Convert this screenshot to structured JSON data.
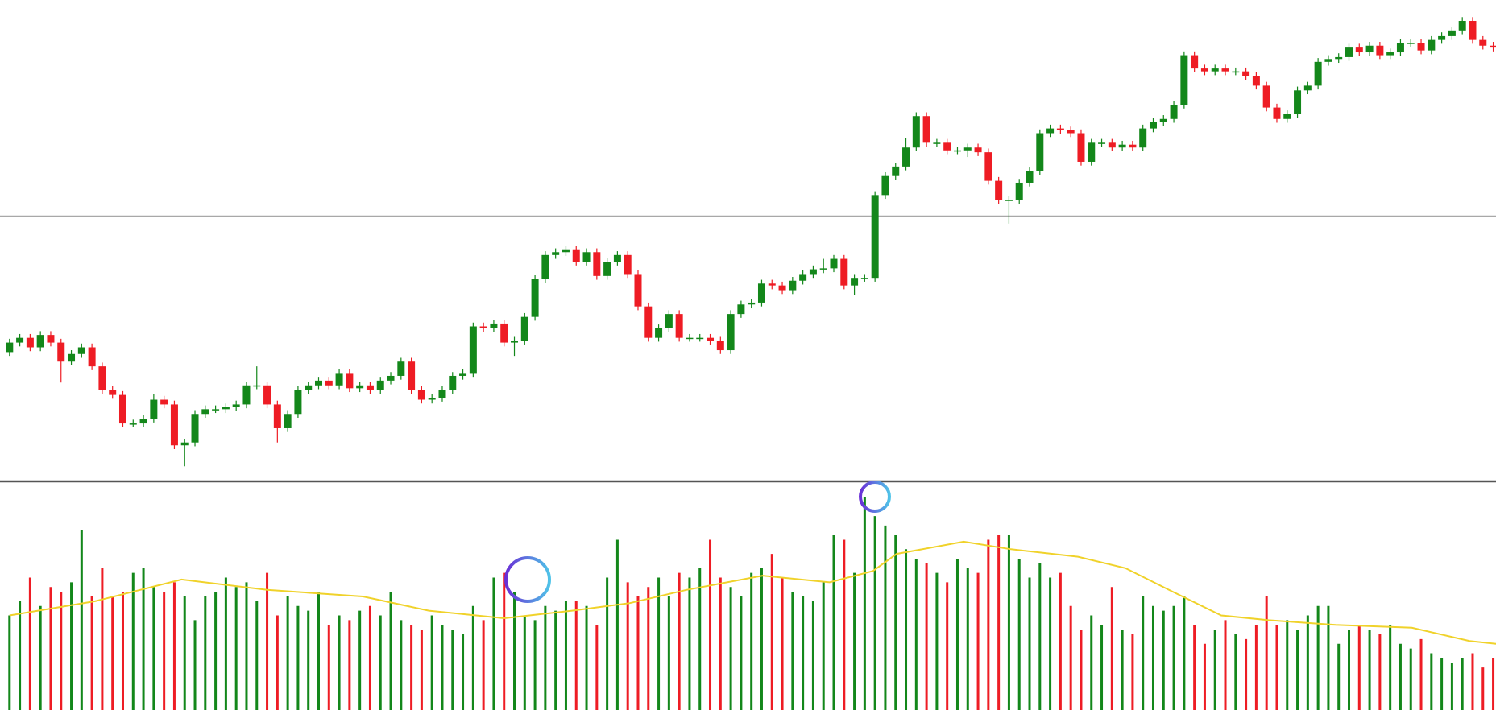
{
  "chart_data": {
    "type": "candlestick",
    "up_color": "#13871a",
    "down_color": "#ee1c24",
    "ylim": [
      245,
      750
    ],
    "reference_line": 523,
    "reference_color": "#a8a8a8",
    "open": [
      380,
      390,
      395,
      385,
      398,
      390,
      370,
      378,
      385,
      365,
      340,
      335,
      305,
      305,
      310,
      330,
      325,
      282,
      285,
      315,
      320,
      320,
      322,
      325,
      345,
      345,
      325,
      300,
      315,
      340,
      345,
      350,
      345,
      358,
      342,
      345,
      340,
      350,
      355,
      370,
      340,
      330,
      332,
      340,
      355,
      358,
      407,
      405,
      410,
      390,
      392,
      417,
      457,
      482,
      485,
      488,
      475,
      485,
      460,
      475,
      482,
      462,
      428,
      395,
      405,
      420,
      395,
      395,
      395,
      392,
      382,
      420,
      430,
      432,
      452,
      450,
      445,
      455,
      462,
      467,
      468,
      478,
      450,
      458,
      458,
      545,
      565,
      575,
      595,
      628,
      600,
      600,
      592,
      592,
      595,
      590,
      560,
      540,
      540,
      558,
      570,
      610,
      615,
      613,
      610,
      580,
      600,
      600,
      595,
      598,
      595,
      615,
      622,
      625,
      640,
      692,
      678,
      675,
      678,
      675,
      675,
      670,
      660,
      637,
      625,
      630,
      655,
      660,
      685,
      688,
      690,
      700,
      695,
      702,
      692,
      695,
      705,
      705,
      697,
      708,
      712,
      718,
      728,
      708,
      702
    ],
    "close": [
      390,
      395,
      385,
      398,
      390,
      370,
      378,
      385,
      365,
      340,
      335,
      305,
      305,
      310,
      330,
      325,
      282,
      285,
      315,
      320,
      320,
      322,
      325,
      345,
      345,
      325,
      300,
      315,
      340,
      345,
      350,
      345,
      358,
      342,
      345,
      340,
      350,
      355,
      370,
      340,
      330,
      332,
      340,
      355,
      358,
      407,
      405,
      410,
      390,
      392,
      417,
      457,
      482,
      485,
      488,
      475,
      485,
      460,
      475,
      482,
      462,
      428,
      395,
      405,
      420,
      395,
      395,
      395,
      392,
      382,
      420,
      430,
      432,
      452,
      450,
      445,
      455,
      462,
      467,
      468,
      478,
      450,
      458,
      458,
      545,
      565,
      575,
      595,
      628,
      600,
      600,
      592,
      592,
      595,
      590,
      560,
      540,
      540,
      558,
      570,
      610,
      615,
      613,
      610,
      580,
      600,
      600,
      595,
      598,
      595,
      615,
      622,
      625,
      640,
      692,
      678,
      675,
      678,
      675,
      675,
      670,
      660,
      637,
      625,
      630,
      655,
      660,
      685,
      688,
      690,
      700,
      695,
      702,
      692,
      695,
      705,
      705,
      697,
      708,
      712,
      718,
      728,
      708,
      702,
      700
    ],
    "high": [
      394,
      399,
      399,
      402,
      402,
      394,
      382,
      389,
      389,
      369,
      344,
      339,
      309,
      314,
      336,
      334,
      329,
      289,
      319,
      324,
      324,
      326,
      329,
      349,
      365,
      349,
      329,
      319,
      344,
      349,
      354,
      354,
      362,
      362,
      349,
      349,
      354,
      359,
      374,
      374,
      344,
      336,
      344,
      359,
      362,
      411,
      411,
      414,
      414,
      396,
      421,
      461,
      486,
      489,
      492,
      492,
      489,
      489,
      479,
      486,
      486,
      466,
      432,
      409,
      424,
      424,
      399,
      399,
      399,
      396,
      424,
      434,
      436,
      456,
      456,
      454,
      459,
      466,
      471,
      478,
      482,
      482,
      462,
      462,
      549,
      569,
      579,
      605,
      632,
      632,
      604,
      604,
      596,
      599,
      599,
      594,
      564,
      544,
      562,
      574,
      614,
      619,
      619,
      617,
      614,
      604,
      604,
      604,
      602,
      602,
      619,
      626,
      629,
      644,
      696,
      696,
      682,
      682,
      682,
      679,
      679,
      674,
      664,
      641,
      634,
      659,
      664,
      689,
      692,
      694,
      704,
      704,
      706,
      706,
      699,
      709,
      709,
      709,
      712,
      716,
      722,
      732,
      732,
      712,
      706
    ],
    "low": [
      376,
      386,
      381,
      381,
      386,
      348,
      366,
      374,
      361,
      336,
      331,
      301,
      301,
      301,
      306,
      321,
      278,
      260,
      281,
      311,
      316,
      316,
      318,
      321,
      341,
      321,
      285,
      296,
      311,
      336,
      341,
      341,
      341,
      338,
      338,
      336,
      336,
      346,
      351,
      336,
      326,
      326,
      328,
      336,
      351,
      354,
      401,
      401,
      386,
      376,
      388,
      413,
      453,
      478,
      481,
      471,
      471,
      456,
      456,
      471,
      458,
      424,
      391,
      391,
      401,
      391,
      391,
      391,
      388,
      378,
      378,
      416,
      426,
      428,
      446,
      441,
      441,
      451,
      458,
      463,
      464,
      446,
      440,
      454,
      454,
      541,
      561,
      571,
      591,
      596,
      596,
      588,
      588,
      585,
      586,
      556,
      536,
      515,
      536,
      554,
      566,
      606,
      609,
      606,
      576,
      576,
      596,
      591,
      591,
      591,
      591,
      611,
      618,
      621,
      636,
      674,
      671,
      671,
      671,
      671,
      666,
      656,
      633,
      621,
      621,
      626,
      651,
      656,
      681,
      684,
      686,
      691,
      691,
      688,
      688,
      691,
      701,
      693,
      693,
      704,
      708,
      714,
      704,
      698,
      696
    ],
    "volume": {
      "ylim": [
        0,
        240
      ],
      "values": [
        100,
        115,
        140,
        110,
        130,
        125,
        135,
        190,
        120,
        150,
        120,
        125,
        145,
        150,
        130,
        125,
        135,
        120,
        95,
        120,
        125,
        140,
        130,
        135,
        115,
        145,
        100,
        120,
        110,
        105,
        125,
        90,
        100,
        95,
        105,
        110,
        100,
        125,
        95,
        90,
        85,
        100,
        90,
        85,
        80,
        110,
        95,
        140,
        145,
        125,
        100,
        95,
        110,
        105,
        115,
        115,
        110,
        90,
        140,
        180,
        135,
        120,
        130,
        140,
        120,
        145,
        140,
        150,
        180,
        140,
        130,
        120,
        145,
        150,
        165,
        140,
        125,
        120,
        115,
        135,
        185,
        180,
        145,
        225,
        205,
        195,
        185,
        170,
        160,
        155,
        145,
        135,
        160,
        150,
        145,
        180,
        185,
        185,
        160,
        140,
        155,
        140,
        145,
        110,
        85,
        100,
        90,
        130,
        85,
        80,
        120,
        110,
        105,
        110,
        120,
        90,
        70,
        85,
        95,
        80,
        75,
        90,
        120,
        90,
        95,
        85,
        100,
        110,
        110,
        70,
        85,
        90,
        85,
        80,
        90,
        70,
        65,
        75,
        60,
        55,
        50,
        55,
        60,
        45,
        55
      ]
    },
    "ma": {
      "color": "#f0d22a",
      "x": [
        0,
        8.3,
        16.7,
        25,
        34.3,
        40.7,
        48,
        54.6,
        60.2,
        65.7,
        73.1,
        79.6,
        83.8,
        86.1,
        92.6,
        97.2,
        103.7,
        108.3,
        112.9,
        117.6,
        122.2,
        128.7,
        136.1,
        141.7,
        144.3
      ],
      "values": [
        100,
        115,
        138,
        127,
        120,
        105,
        97,
        105,
        113,
        127,
        142,
        135,
        147,
        165,
        178,
        170,
        162,
        150,
        125,
        100,
        95,
        90,
        87,
        73,
        70
      ]
    }
  }
}
